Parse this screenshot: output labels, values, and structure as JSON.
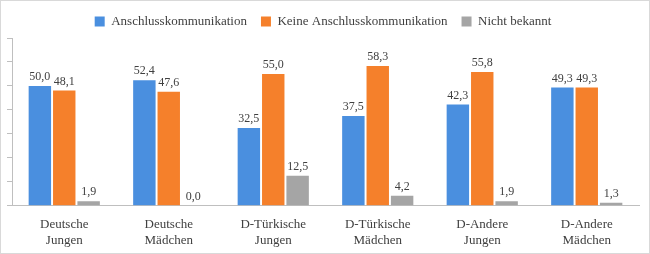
{
  "chart_data": {
    "type": "bar",
    "categories": [
      "Deutsche Jungen",
      "Deutsche Mädchen",
      "D-Türkische Jungen",
      "D-Türkische Mädchen",
      "D-Andere Jungen",
      "D-Andere Mädchen"
    ],
    "series": [
      {
        "name": "Anschlusskommunikation",
        "color": "#4a8fdf",
        "values": [
          50.0,
          52.4,
          32.5,
          37.5,
          42.3,
          49.3
        ],
        "value_labels": [
          "50,0",
          "52,4",
          "32,5",
          "37,5",
          "42,3",
          "49,3"
        ]
      },
      {
        "name": "Keine Anschlusskommunikation",
        "color": "#f5802b",
        "values": [
          48.1,
          47.6,
          55.0,
          58.3,
          55.8,
          49.3
        ],
        "value_labels": [
          "48,1",
          "47,6",
          "55,0",
          "58,3",
          "55,8",
          "49,3"
        ]
      },
      {
        "name": "Nicht bekannt",
        "color": "#a5a5a5",
        "values": [
          1.9,
          0.0,
          12.5,
          4.2,
          1.9,
          1.3
        ],
        "value_labels": [
          "1,9",
          "0,0",
          "12,5",
          "4,2",
          "1,9",
          "1,3"
        ]
      }
    ],
    "ylim": [
      0,
      70
    ],
    "yticks": [
      0,
      10,
      20,
      30,
      40,
      50,
      60,
      70
    ],
    "grid": false,
    "legend": "top",
    "data_labels": true,
    "tick_labels": "x"
  }
}
